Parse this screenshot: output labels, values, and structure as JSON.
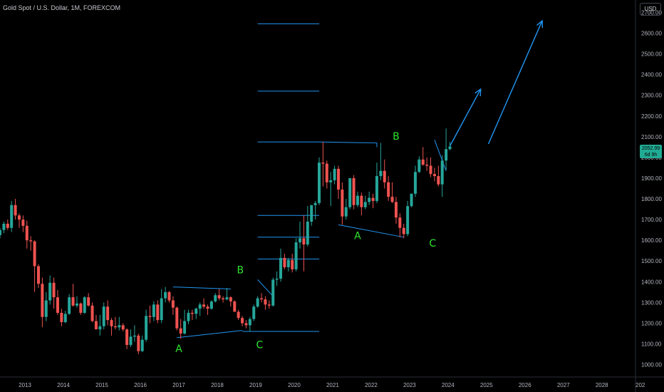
{
  "header": {
    "title": "Gold Spot / U.S. Dollar, 1M, FOREXCOM",
    "currency_button": "USD"
  },
  "last_price": {
    "value": "2052.99",
    "countdown": "6d 9h"
  },
  "colors": {
    "up": "#26a69a",
    "down": "#ef5350",
    "drawing": "#2196f3",
    "wave_label": "#2ee52e",
    "background": "#000000",
    "price_tag": "#22ab94"
  },
  "chart_data": {
    "type": "candlestick",
    "symbol": "Gold Spot / U.S. Dollar",
    "interval": "1M",
    "source": "FOREXCOM",
    "y_axis": {
      "ticks": [
        "1000.00",
        "1100.00",
        "1200.00",
        "1300.00",
        "1400.00",
        "1500.00",
        "1600.00",
        "1700.00",
        "1800.00",
        "1900.00",
        "2000.00",
        "2100.00",
        "2200.00",
        "2300.00",
        "2400.00",
        "2500.00",
        "2600.00",
        "2700.00"
      ],
      "range": [
        940,
        2760
      ]
    },
    "x_axis": {
      "ticks": [
        "2013",
        "2014",
        "2015",
        "2016",
        "2017",
        "2018",
        "2019",
        "2020",
        "2021",
        "2022",
        "2023",
        "2024",
        "2025",
        "2026",
        "2027",
        "2028",
        "202"
      ],
      "range": [
        2012.35,
        2028.95
      ]
    },
    "candles": [
      [
        2012.35,
        1625,
        1660,
        1610,
        1650
      ],
      [
        2012.45,
        1650,
        1690,
        1635,
        1680
      ],
      [
        2012.55,
        1680,
        1700,
        1650,
        1660
      ],
      [
        2012.65,
        1660,
        1790,
        1640,
        1770
      ],
      [
        2012.75,
        1770,
        1800,
        1700,
        1720
      ],
      [
        2012.85,
        1720,
        1730,
        1660,
        1700
      ],
      [
        2012.95,
        1700,
        1720,
        1640,
        1670
      ],
      [
        2013.05,
        1670,
        1695,
        1560,
        1600
      ],
      [
        2013.15,
        1600,
        1620,
        1550,
        1595
      ],
      [
        2013.25,
        1595,
        1600,
        1350,
        1475
      ],
      [
        2013.35,
        1475,
        1485,
        1370,
        1390
      ],
      [
        2013.45,
        1390,
        1420,
        1180,
        1230
      ],
      [
        2013.55,
        1230,
        1350,
        1210,
        1310
      ],
      [
        2013.65,
        1310,
        1430,
        1290,
        1395
      ],
      [
        2013.75,
        1395,
        1420,
        1270,
        1325
      ],
      [
        2013.85,
        1325,
        1360,
        1240,
        1250
      ],
      [
        2013.95,
        1250,
        1270,
        1185,
        1205
      ],
      [
        2014.05,
        1205,
        1260,
        1200,
        1245
      ],
      [
        2014.15,
        1245,
        1340,
        1240,
        1325
      ],
      [
        2014.25,
        1325,
        1390,
        1280,
        1285
      ],
      [
        2014.35,
        1285,
        1330,
        1275,
        1295
      ],
      [
        2014.45,
        1295,
        1300,
        1240,
        1250
      ],
      [
        2014.55,
        1250,
        1330,
        1245,
        1325
      ],
      [
        2014.65,
        1325,
        1345,
        1280,
        1285
      ],
      [
        2014.75,
        1285,
        1300,
        1205,
        1210
      ],
      [
        2014.85,
        1210,
        1240,
        1180,
        1170
      ],
      [
        2014.95,
        1170,
        1240,
        1140,
        1185
      ],
      [
        2015.05,
        1185,
        1300,
        1170,
        1280
      ],
      [
        2015.15,
        1280,
        1310,
        1190,
        1215
      ],
      [
        2015.25,
        1215,
        1225,
        1140,
        1185
      ],
      [
        2015.35,
        1185,
        1230,
        1170,
        1180
      ],
      [
        2015.45,
        1180,
        1230,
        1165,
        1190
      ],
      [
        2015.55,
        1190,
        1200,
        1160,
        1170
      ],
      [
        2015.65,
        1170,
        1175,
        1075,
        1095
      ],
      [
        2015.75,
        1095,
        1170,
        1085,
        1135
      ],
      [
        2015.85,
        1135,
        1190,
        1110,
        1140
      ],
      [
        2015.95,
        1140,
        1150,
        1050,
        1065
      ],
      [
        2016.05,
        1065,
        1140,
        1060,
        1120
      ],
      [
        2016.15,
        1120,
        1265,
        1110,
        1235
      ],
      [
        2016.25,
        1235,
        1285,
        1200,
        1230
      ],
      [
        2016.35,
        1230,
        1305,
        1210,
        1290
      ],
      [
        2016.45,
        1290,
        1310,
        1200,
        1215
      ],
      [
        2016.55,
        1215,
        1365,
        1200,
        1320
      ],
      [
        2016.65,
        1320,
        1375,
        1300,
        1350
      ],
      [
        2016.75,
        1350,
        1355,
        1300,
        1310
      ],
      [
        2016.85,
        1310,
        1330,
        1240,
        1275
      ],
      [
        2016.95,
        1275,
        1280,
        1165,
        1175
      ],
      [
        2017.05,
        1175,
        1220,
        1125,
        1150
      ],
      [
        2017.15,
        1150,
        1265,
        1145,
        1210
      ],
      [
        2017.25,
        1210,
        1265,
        1195,
        1250
      ],
      [
        2017.35,
        1250,
        1265,
        1215,
        1245
      ],
      [
        2017.45,
        1245,
        1275,
        1220,
        1270
      ],
      [
        2017.55,
        1270,
        1300,
        1235,
        1290
      ],
      [
        2017.65,
        1290,
        1320,
        1270,
        1280
      ],
      [
        2017.75,
        1280,
        1290,
        1240,
        1270
      ],
      [
        2017.85,
        1270,
        1310,
        1265,
        1305
      ],
      [
        2017.95,
        1305,
        1345,
        1300,
        1335
      ],
      [
        2018.05,
        1335,
        1365,
        1310,
        1320
      ],
      [
        2018.15,
        1320,
        1330,
        1300,
        1315
      ],
      [
        2018.25,
        1315,
        1370,
        1310,
        1325
      ],
      [
        2018.35,
        1325,
        1330,
        1280,
        1305
      ],
      [
        2018.45,
        1305,
        1310,
        1255,
        1255
      ],
      [
        2018.55,
        1255,
        1265,
        1215,
        1225
      ],
      [
        2018.65,
        1225,
        1235,
        1185,
        1200
      ],
      [
        2018.75,
        1200,
        1215,
        1175,
        1190
      ],
      [
        2018.85,
        1190,
        1230,
        1160,
        1220
      ],
      [
        2018.95,
        1220,
        1290,
        1210,
        1280
      ],
      [
        2019.05,
        1280,
        1330,
        1275,
        1320
      ],
      [
        2019.15,
        1320,
        1345,
        1300,
        1315
      ],
      [
        2019.25,
        1315,
        1330,
        1265,
        1290
      ],
      [
        2019.35,
        1290,
        1310,
        1270,
        1285
      ],
      [
        2019.45,
        1285,
        1420,
        1280,
        1410
      ],
      [
        2019.55,
        1410,
        1450,
        1380,
        1415
      ],
      [
        2019.65,
        1415,
        1560,
        1400,
        1515
      ],
      [
        2019.75,
        1515,
        1535,
        1460,
        1470
      ],
      [
        2019.85,
        1470,
        1515,
        1450,
        1505
      ],
      [
        2019.95,
        1505,
        1535,
        1445,
        1460
      ],
      [
        2020.05,
        1460,
        1610,
        1450,
        1590
      ],
      [
        2020.15,
        1590,
        1690,
        1560,
        1610
      ],
      [
        2020.25,
        1610,
        1720,
        1450,
        1580
      ],
      [
        2020.35,
        1580,
        1765,
        1570,
        1690
      ],
      [
        2020.45,
        1690,
        1770,
        1670,
        1770
      ],
      [
        2020.55,
        1770,
        1790,
        1700,
        1780
      ],
      [
        2020.65,
        1780,
        2000,
        1770,
        1975
      ],
      [
        2020.75,
        1975,
        2075,
        1860,
        1970
      ],
      [
        2020.85,
        1970,
        1985,
        1850,
        1880
      ],
      [
        2020.95,
        1880,
        1930,
        1765,
        1890
      ],
      [
        2021.05,
        1890,
        1960,
        1870,
        1945
      ],
      [
        2021.15,
        1945,
        1960,
        1800,
        1845
      ],
      [
        2021.25,
        1845,
        1880,
        1675,
        1715
      ],
      [
        2021.35,
        1715,
        1800,
        1700,
        1760
      ],
      [
        2021.45,
        1760,
        1900,
        1750,
        1900
      ],
      [
        2021.55,
        1900,
        1915,
        1750,
        1770
      ],
      [
        2021.65,
        1770,
        1835,
        1760,
        1815
      ],
      [
        2021.75,
        1815,
        1830,
        1720,
        1760
      ],
      [
        2021.85,
        1760,
        1815,
        1750,
        1785
      ],
      [
        2021.95,
        1785,
        1835,
        1770,
        1805
      ],
      [
        2022.05,
        1805,
        1825,
        1755,
        1790
      ],
      [
        2022.15,
        1790,
        1975,
        1780,
        1910
      ],
      [
        2022.25,
        1910,
        2070,
        1890,
        1935
      ],
      [
        2022.35,
        1935,
        1990,
        1850,
        1880
      ],
      [
        2022.45,
        1880,
        1910,
        1790,
        1810
      ],
      [
        2022.55,
        1810,
        1880,
        1780,
        1785
      ],
      [
        2022.65,
        1785,
        1810,
        1680,
        1710
      ],
      [
        2022.75,
        1710,
        1730,
        1615,
        1660
      ],
      [
        2022.85,
        1660,
        1680,
        1610,
        1630
      ],
      [
        2022.95,
        1630,
        1790,
        1620,
        1765
      ],
      [
        2023.05,
        1765,
        1825,
        1760,
        1825
      ],
      [
        2023.15,
        1825,
        1960,
        1810,
        1930
      ],
      [
        2023.25,
        1930,
        2005,
        1925,
        1990
      ],
      [
        2023.35,
        1990,
        2050,
        1960,
        1965
      ],
      [
        2023.45,
        1965,
        2000,
        1935,
        1960
      ],
      [
        2023.55,
        1960,
        2000,
        1905,
        1920
      ],
      [
        2023.65,
        1920,
        1950,
        1885,
        1910
      ],
      [
        2023.75,
        1910,
        1960,
        1860,
        1870
      ],
      [
        2023.85,
        1870,
        2010,
        1810,
        1985
      ],
      [
        2023.95,
        1985,
        2140,
        1940,
        2040
      ],
      [
        2024.05,
        2040,
        2075,
        2035,
        2053
      ]
    ],
    "horizontal_lines": [
      {
        "price": 2645,
        "x_start": 2019.05,
        "x_end": 2020.65
      },
      {
        "price": 2320,
        "x_start": 2019.05,
        "x_end": 2020.65
      },
      {
        "price": 2075,
        "x_start": 2019.05,
        "x_end": 2020.65
      },
      {
        "price": 1720,
        "x_start": 2019.05,
        "x_end": 2020.65
      },
      {
        "price": 1615,
        "x_start": 2019.05,
        "x_end": 2020.65
      },
      {
        "price": 1510,
        "x_start": 2019.05,
        "x_end": 2020.65
      },
      {
        "price": 1160,
        "x_start": 2018.65,
        "x_end": 2020.65
      }
    ],
    "trend_lines": [
      {
        "points": [
          [
            2016.85,
            1375
          ],
          [
            2018.35,
            1365
          ]
        ]
      },
      {
        "points": [
          [
            2016.95,
            1130
          ],
          [
            2018.65,
            1165
          ]
        ]
      },
      {
        "points": [
          [
            2019.05,
            1410
          ],
          [
            2019.45,
            1330
          ]
        ]
      },
      {
        "points": [
          [
            2020.65,
            2075
          ],
          [
            2022.15,
            2070
          ],
          [
            2022.15,
            2050
          ]
        ]
      },
      {
        "points": [
          [
            2021.15,
            1675
          ],
          [
            2022.85,
            1615
          ]
        ]
      },
      {
        "points": [
          [
            2023.65,
            2085
          ],
          [
            2023.95,
            1935
          ]
        ]
      }
    ],
    "arrows": [
      {
        "from": [
          2024.05,
          2055
        ],
        "to": [
          2024.85,
          2330
        ]
      },
      {
        "from": [
          2025.05,
          2065
        ],
        "to": [
          2026.45,
          2660
        ]
      }
    ],
    "wave_labels": [
      {
        "text": "A",
        "x": 2017.0,
        "price": 1060
      },
      {
        "text": "B",
        "x": 2018.6,
        "price": 1440
      },
      {
        "text": "C",
        "x": 2019.1,
        "price": 1080
      },
      {
        "text": "A",
        "x": 2021.65,
        "price": 1605
      },
      {
        "text": "B",
        "x": 2022.65,
        "price": 2085
      },
      {
        "text": "C",
        "x": 2023.6,
        "price": 1570
      }
    ]
  }
}
